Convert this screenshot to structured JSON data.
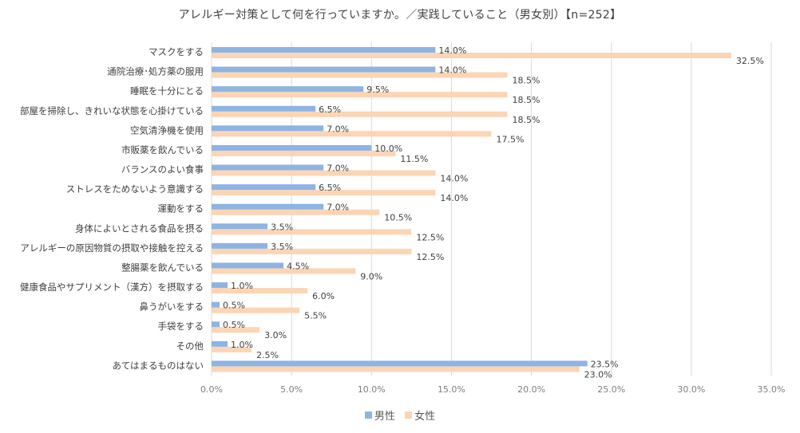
{
  "chart_data": {
    "type": "bar",
    "orientation": "horizontal",
    "title": "アレルギー対策として何を行っていますか。／実践していること（男女別）【n=252】",
    "categories": [
      "マスクをする",
      "通院治療･処方薬の服用",
      "睡眠を十分にとる",
      "部屋を掃除し、きれいな状態を心掛けている",
      "空気清浄機を使用",
      "市販薬を飲んでいる",
      "バランスのよい食事",
      "ストレスをためないよう意識する",
      "運動をする",
      "身体によいとされる食品を摂る",
      "アレルギーの原因物質の摂取や接触を控える",
      "整腸薬を飲んでいる",
      "健康食品やサプリメント（漢方）を摂取する",
      "鼻うがいをする",
      "手袋をする",
      "その他",
      "あてはまるものはない"
    ],
    "series": [
      {
        "name": "男性",
        "color": "#8eb4e3",
        "values": [
          14.0,
          14.0,
          9.5,
          6.5,
          7.0,
          10.0,
          7.0,
          6.5,
          7.0,
          3.5,
          3.5,
          4.5,
          1.0,
          0.5,
          0.5,
          1.0,
          23.5
        ],
        "labels": [
          "14.0%",
          "14.0%",
          "9.5%",
          "6.5%",
          "7.0%",
          "10.0%",
          "7.0%",
          "6.5%",
          "7.0%",
          "3.5%",
          "3.5%",
          "4.5%",
          "1.0%",
          "0.5%",
          "0.5%",
          "1.0%",
          "23.5%"
        ]
      },
      {
        "name": "女性",
        "color": "#fcd5b5",
        "values": [
          32.5,
          18.5,
          18.5,
          18.5,
          17.5,
          11.5,
          14.0,
          14.0,
          10.5,
          12.5,
          12.5,
          9.0,
          6.0,
          5.5,
          3.0,
          2.5,
          23.0
        ],
        "labels": [
          "32.5%",
          "18.5%",
          "18.5%",
          "18.5%",
          "17.5%",
          "11.5%",
          "14.0%",
          "14.0%",
          "10.5%",
          "12.5%",
          "12.5%",
          "9.0%",
          "6.0%",
          "5.5%",
          "3.0%",
          "2.5%",
          "23.0%"
        ]
      }
    ],
    "xlim": [
      0,
      35
    ],
    "xticks": [
      "0.0%",
      "5.0%",
      "10.0%",
      "15.0%",
      "20.0%",
      "25.0%",
      "30.0%",
      "35.0%"
    ],
    "xtick_values": [
      0,
      5,
      10,
      15,
      20,
      25,
      30,
      35
    ],
    "xlabel": "",
    "ylabel": "",
    "grid": true,
    "legend_position": "bottom",
    "colors": {
      "grid": "#d9d9d9",
      "axis": "#d9d9d9"
    }
  }
}
